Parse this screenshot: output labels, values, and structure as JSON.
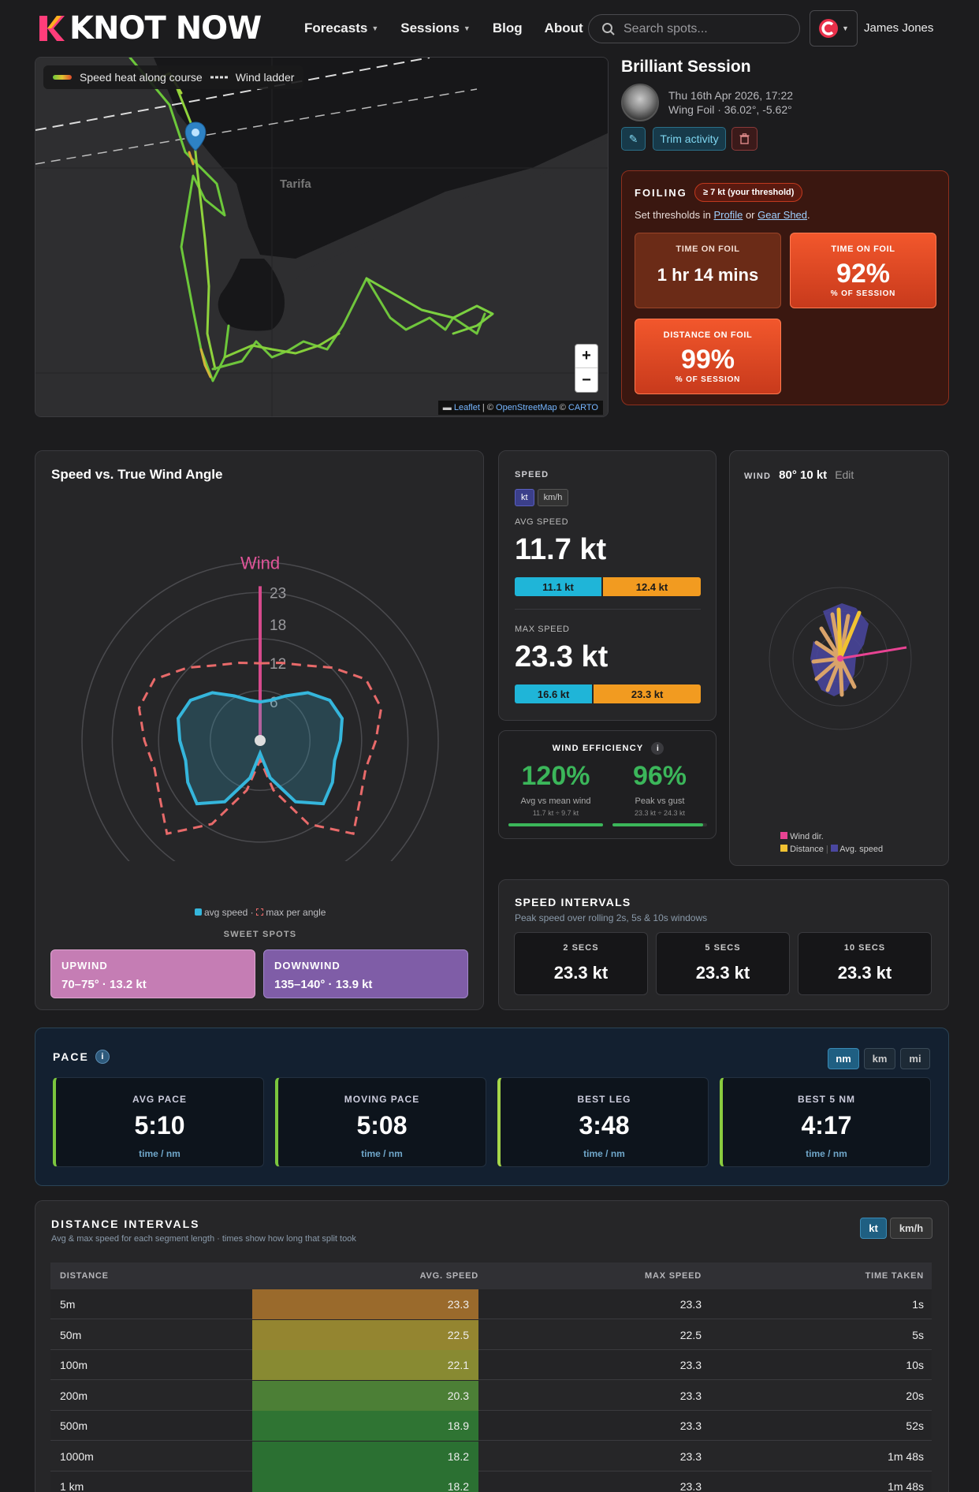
{
  "nav": {
    "brand": "KNOT NOW",
    "links": [
      {
        "label": "Forecasts",
        "dropdown": true
      },
      {
        "label": "Sessions",
        "dropdown": true
      },
      {
        "label": "Blog",
        "dropdown": false
      },
      {
        "label": "About",
        "dropdown": false
      }
    ],
    "search_placeholder": "Search spots...",
    "user_name": "James Jones"
  },
  "map": {
    "legend_speed": "Speed heat along course",
    "legend_wind": "Wind ladder",
    "place_label": "Tarifa",
    "zoom_in": "+",
    "zoom_out": "−",
    "attribution_leaflet": "Leaflet",
    "attribution_osm": "OpenStreetMap",
    "attribution_carto": "CARTO"
  },
  "session": {
    "title": "Brilliant Session",
    "date": "Thu 16th Apr 2026, 17:22",
    "meta": "Wing Foil · 36.02°, -5.62°",
    "edit_icon": "pencil-icon",
    "trim_label": "Trim activity",
    "delete_icon": "trash-icon"
  },
  "foiling": {
    "label": "FOILING",
    "threshold": "≥ 7 kt (your threshold)",
    "sub_prefix": "Set thresholds in",
    "link_profile": "Profile",
    "sub_or": "or",
    "link_gear": "Gear Shed",
    "sub_suffix": ".",
    "cards": [
      {
        "title": "TIME ON FOIL",
        "value": "1 hr 14 mins",
        "sub": ""
      },
      {
        "title": "TIME ON FOIL",
        "value": "92%",
        "sub": "% OF SESSION"
      },
      {
        "title": "DISTANCE ON FOIL",
        "value": "99%",
        "sub": "% OF SESSION"
      }
    ]
  },
  "polar": {
    "title": "Speed vs. True Wind Angle",
    "wind_label": "Wind",
    "ring_labels": [
      "23",
      "18",
      "12",
      "6"
    ],
    "legend_avg": "avg speed",
    "legend_sep": "·",
    "legend_max": "max per angle",
    "sweet_title": "SWEET SPOTS",
    "sweet_spots": [
      {
        "label": "UPWIND",
        "value": "70–75° · 13.2 kt",
        "color": "#c57db4"
      },
      {
        "label": "DOWNWIND",
        "value": "135–140° · 13.9 kt",
        "color": "#7f5da7"
      }
    ],
    "chart_data": {
      "type": "polar",
      "title": "Speed vs. True Wind Angle",
      "r_ticks": [
        6,
        12,
        18,
        23
      ],
      "series": [
        {
          "name": "avg speed",
          "color": "#35b6dc",
          "angles": [
            0,
            15,
            30,
            45,
            60,
            75,
            90,
            105,
            120,
            135,
            150,
            165,
            180
          ],
          "values": [
            6,
            6.5,
            8,
            10.5,
            12.5,
            13.2,
            12.5,
            12,
            13,
            13.9,
            11,
            6,
            2
          ]
        },
        {
          "name": "max per angle",
          "color": "#e86a6a",
          "angles": [
            0,
            15,
            30,
            45,
            60,
            75,
            90,
            105,
            120,
            135,
            150,
            165,
            180
          ],
          "values": [
            12,
            12.5,
            13.5,
            16,
            19,
            19.5,
            18,
            17,
            18,
            20.5,
            15,
            8,
            3
          ]
        }
      ]
    }
  },
  "speed": {
    "label": "SPEED",
    "unit_kt": "kt",
    "unit_kmh": "km/h",
    "avg_label": "AVG SPEED",
    "avg_value": "11.7 kt",
    "avg_bar": [
      {
        "value": "11.1 kt",
        "share": 0.47,
        "color": "#1fb5d8"
      },
      {
        "value": "12.4 kt",
        "share": 0.53,
        "color": "#f29b20"
      }
    ],
    "max_label": "MAX SPEED",
    "max_value": "23.3 kt",
    "max_bar": [
      {
        "value": "16.6 kt",
        "share": 0.42,
        "color": "#1fb5d8"
      },
      {
        "value": "23.3 kt",
        "share": 0.58,
        "color": "#f29b20"
      }
    ]
  },
  "wind": {
    "label": "WIND",
    "value": "80° 10 kt",
    "edit": "Edit",
    "legend_dir": "Wind dir.",
    "legend_distance": "Distance",
    "legend_sep": "|",
    "legend_speed": "Avg. speed",
    "colors": {
      "dir": "#e84393",
      "distance": "#f1c232",
      "speed": "#4a47a0"
    }
  },
  "efficiency": {
    "title": "WIND EFFICIENCY",
    "info": "i",
    "items": [
      {
        "value": "120%",
        "label": "Avg vs mean wind",
        "detail": "11.7 kt ÷ 9.7 kt",
        "fill": 1.0
      },
      {
        "value": "96%",
        "label": "Peak vs gust",
        "detail": "23.3 kt ÷ 24.3 kt",
        "fill": 0.96
      }
    ]
  },
  "intervals": {
    "title": "SPEED INTERVALS",
    "subtitle": "Peak speed over rolling 2s, 5s & 10s windows",
    "items": [
      {
        "label": "2 SECS",
        "value": "23.3 kt"
      },
      {
        "label": "5 SECS",
        "value": "23.3 kt"
      },
      {
        "label": "10 SECS",
        "value": "23.3 kt"
      }
    ]
  },
  "pace": {
    "title": "PACE",
    "info": "i",
    "units": [
      "nm",
      "km",
      "mi"
    ],
    "active_unit": "nm",
    "cards": [
      {
        "title": "AVG PACE",
        "value": "5:10",
        "sub": "time / nm"
      },
      {
        "title": "MOVING PACE",
        "value": "5:08",
        "sub": "time / nm"
      },
      {
        "title": "BEST LEG",
        "value": "3:48",
        "sub": "time / nm"
      },
      {
        "title": "BEST 5 NM",
        "value": "4:17",
        "sub": "time / nm"
      }
    ]
  },
  "distance": {
    "title": "DISTANCE INTERVALS",
    "subtitle": "Avg & max speed for each segment length · times show how long that split took",
    "unit_kt": "kt",
    "unit_kmh": "km/h",
    "columns": [
      "DISTANCE",
      "AVG. SPEED",
      "MAX SPEED",
      "TIME TAKEN"
    ],
    "rows": [
      {
        "distance": "5m",
        "avg": "23.3",
        "max": "23.3",
        "time": "1s",
        "color": "#9a6a2c"
      },
      {
        "distance": "50m",
        "avg": "22.5",
        "max": "22.5",
        "time": "5s",
        "color": "#948530"
      },
      {
        "distance": "100m",
        "avg": "22.1",
        "max": "23.3",
        "time": "10s",
        "color": "#888a32"
      },
      {
        "distance": "200m",
        "avg": "20.3",
        "max": "23.3",
        "time": "20s",
        "color": "#4c7f36"
      },
      {
        "distance": "500m",
        "avg": "18.9",
        "max": "23.3",
        "time": "52s",
        "color": "#2f7433"
      },
      {
        "distance": "1000m",
        "avg": "18.2",
        "max": "23.3",
        "time": "1m 48s",
        "color": "#2b7032"
      },
      {
        "distance": "1 km",
        "avg": "18.2",
        "max": "23.3",
        "time": "1m 48s",
        "color": "#2b7032"
      }
    ]
  }
}
